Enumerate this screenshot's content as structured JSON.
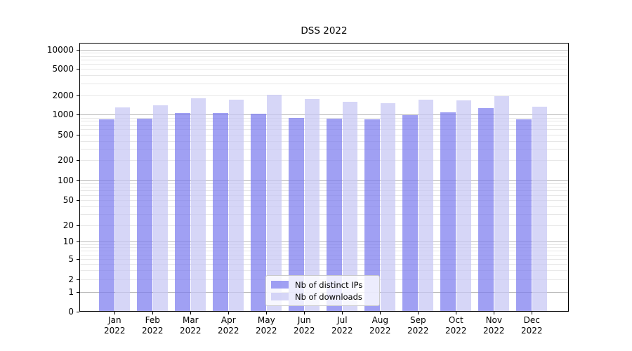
{
  "title": "DSS 2022",
  "chart_data": {
    "type": "bar",
    "title": "DSS 2022",
    "categories": [
      "Jan",
      "Feb",
      "Mar",
      "Apr",
      "May",
      "Jun",
      "Jul",
      "Aug",
      "Sep",
      "Oct",
      "Nov",
      "Dec"
    ],
    "category_year": "2022",
    "series": [
      {
        "name": "Nb of distinct IPs",
        "color": "rgba(124,124,238,0.72)",
        "values": [
          850,
          880,
          1050,
          1050,
          1040,
          900,
          870,
          850,
          990,
          1090,
          1250,
          840
        ]
      },
      {
        "name": "Nb of downloads",
        "color": "rgba(198,198,244,0.72)",
        "values": [
          1300,
          1400,
          1800,
          1700,
          2050,
          1750,
          1600,
          1500,
          1700,
          1680,
          1950,
          1340
        ]
      }
    ],
    "yscale": "symlog",
    "yticks": [
      0,
      1,
      2,
      5,
      10,
      20,
      50,
      100,
      200,
      500,
      1000,
      2000,
      5000,
      10000
    ],
    "ylim": [
      0,
      12700
    ],
    "xlabel": "",
    "ylabel": "",
    "grid": "both",
    "legend_position": "lower center"
  }
}
